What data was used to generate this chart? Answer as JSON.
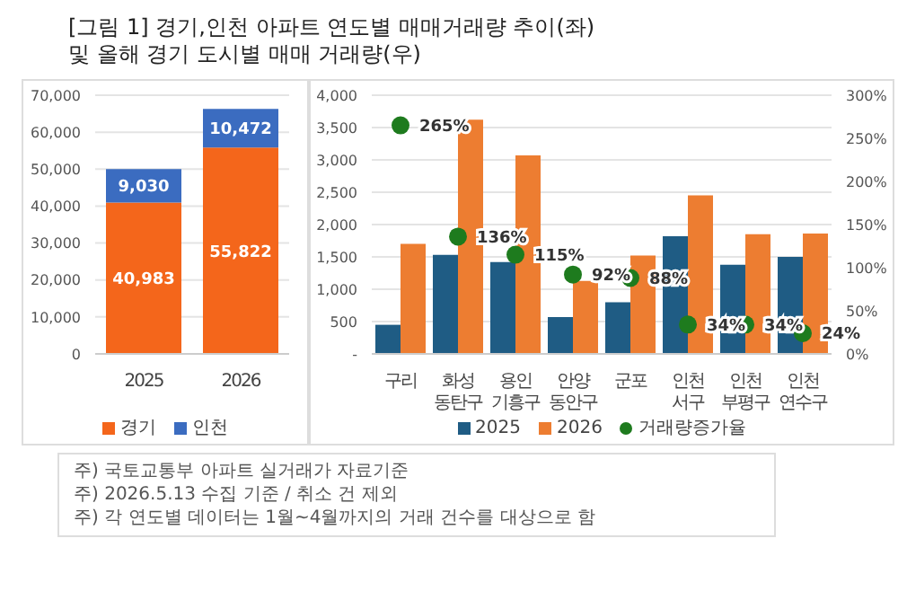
{
  "chart_data": [
    {
      "type": "bar",
      "title": "[그림 1] 경기,인천 아파트 연도별 매매거래량 추이(좌)\n및 올해 경기 도시별 매매 거래량(우)",
      "categories": [
        "2025",
        "2026"
      ],
      "series": [
        {
          "name": "경기",
          "color": "#f4661b",
          "values": [
            40983,
            55822
          ],
          "value_labels": [
            "40,983",
            "55,822"
          ]
        },
        {
          "name": "인천",
          "color": "#3b6cc0",
          "values": [
            9030,
            10472
          ],
          "value_labels": [
            "9,030",
            "10,472"
          ]
        }
      ],
      "stacked": true,
      "ylim": [
        0,
        70000
      ],
      "yticks": [
        0,
        {
          "value": 10000,
          "label": "10,000"
        },
        {
          "value": 20000,
          "label": "20,000"
        },
        {
          "value": 30000,
          "label": "30,000"
        },
        {
          "value": 40000,
          "label": "40,000"
        },
        {
          "value": 50000,
          "label": "50,000"
        },
        {
          "value": 60000,
          "label": "60,000"
        },
        {
          "value": 70000,
          "label": "70,000"
        }
      ],
      "grid": "y",
      "legend": "bottom",
      "annotations": [
        "주) 국토교통부 아파트 실거래가 자료기준",
        "주) 2026.5.13 수집 기준 / 취소 건 제외",
        "주) 각 연도별 데이터는 1월~4월까지의 거래 건수를 대상으로 함"
      ]
    },
    {
      "type": "bar",
      "categories": [
        "구리",
        "화성 동탄구",
        "용인 기흥구",
        "안양 동안구",
        "군포",
        "인천 서구",
        "인천 부평구",
        "인천 연수구"
      ],
      "series": [
        {
          "name": "2025",
          "color": "#1f5c84",
          "values": [
            450,
            1530,
            1420,
            570,
            800,
            1820,
            1380,
            1500
          ]
        },
        {
          "name": "2026",
          "color": "#ed7d31",
          "values": [
            1700,
            3620,
            3070,
            1130,
            1520,
            2450,
            1850,
            1860
          ]
        },
        {
          "name": "거래량증가율",
          "type": "scatter",
          "axis": "y2",
          "color": "#1e7b1e",
          "values": [
            265,
            136,
            115,
            92,
            88,
            34,
            34,
            24
          ],
          "value_labels": [
            "265%",
            "136%",
            "115%",
            "92%",
            "88%",
            "34%",
            "34%",
            "24%"
          ]
        }
      ],
      "ylim": [
        0,
        4000
      ],
      "yticks": [
        {
          "value": 0,
          "label": "-"
        },
        500,
        {
          "value": 1000,
          "label": "1,000"
        },
        {
          "value": 1500,
          "label": "1,500"
        },
        {
          "value": 2000,
          "label": "2,000"
        },
        {
          "value": 2500,
          "label": "2,500"
        },
        {
          "value": 3000,
          "label": "3,000"
        },
        {
          "value": 3500,
          "label": "3,500"
        },
        {
          "value": 4000,
          "label": "4,000"
        }
      ],
      "y2lim": [
        0,
        300
      ],
      "y2ticks": [
        {
          "value": 0,
          "label": "0%"
        },
        {
          "value": 50,
          "label": "50%"
        },
        {
          "value": 100,
          "label": "100%"
        },
        {
          "value": 150,
          "label": "150%"
        },
        {
          "value": 200,
          "label": "200%"
        },
        {
          "value": 250,
          "label": "250%"
        },
        {
          "value": 300,
          "label": "300%"
        }
      ],
      "grid": "y",
      "legend": "bottom",
      "marker": "circle"
    }
  ]
}
